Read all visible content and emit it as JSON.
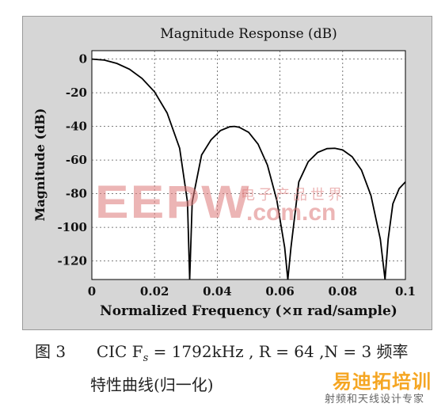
{
  "chart_data": {
    "type": "line",
    "title": "Magnitude Response (dB)",
    "xlabel": "Normalized Frequency (×π rad/sample)",
    "ylabel": "Magnitude (dB)",
    "xlim": [
      0,
      0.1
    ],
    "ylim": [
      -131,
      5
    ],
    "xticks": [
      "0",
      "0.02",
      "0.04",
      "0.06",
      "0.08",
      "0.1"
    ],
    "yticks": [
      "0",
      "-20",
      "-40",
      "-60",
      "-80",
      "-100",
      "-120"
    ],
    "grid": true,
    "series": [
      {
        "x": [
          0,
          0.004,
          0.008,
          0.012,
          0.016,
          0.02,
          0.024,
          0.028,
          0.0305,
          0.0312,
          0.032,
          0.035,
          0.038,
          0.041,
          0.044,
          0.0455,
          0.047,
          0.05,
          0.053,
          0.056,
          0.059,
          0.0615,
          0.0625,
          0.0635,
          0.066,
          0.069,
          0.072,
          0.075,
          0.0775,
          0.08,
          0.083,
          0.086,
          0.089,
          0.092,
          0.0935,
          0.0945,
          0.096,
          0.098,
          0.1
        ],
        "y": [
          0,
          -0.6,
          -2.6,
          -6.0,
          -11.5,
          -19.5,
          -32.0,
          -53.0,
          -85.0,
          -131,
          -85.0,
          -57.0,
          -48.0,
          -42.5,
          -40.2,
          -40.0,
          -40.5,
          -43.5,
          -50.5,
          -63.0,
          -84.0,
          -112.0,
          -131,
          -112.0,
          -73.0,
          -61.0,
          -55.5,
          -53.2,
          -53.0,
          -54.0,
          -58.0,
          -66.0,
          -81.0,
          -107.0,
          -131,
          -107.0,
          -86.0,
          -77.0,
          -73.0
        ]
      }
    ]
  },
  "caption": {
    "figure_label": "图 3",
    "line1_text": "CIC F",
    "line1_sub": "s",
    "line1_rest": "= 1792kHz , R = 64 ,N = 3 频率",
    "line2": "特性曲线(归一化)"
  },
  "watermark": {
    "brand": "EEPW",
    "cn": "电子产品世界",
    "domain": ".com.cn"
  },
  "logo": {
    "main": "易迪拓培训",
    "sub": "射频和天线设计专家"
  },
  "colors": {
    "figure_bg": "#d6d6d6",
    "plot_bg": "#ffffff",
    "line": "#000000",
    "watermark": "#dc7878",
    "logo": "#f5a623"
  }
}
